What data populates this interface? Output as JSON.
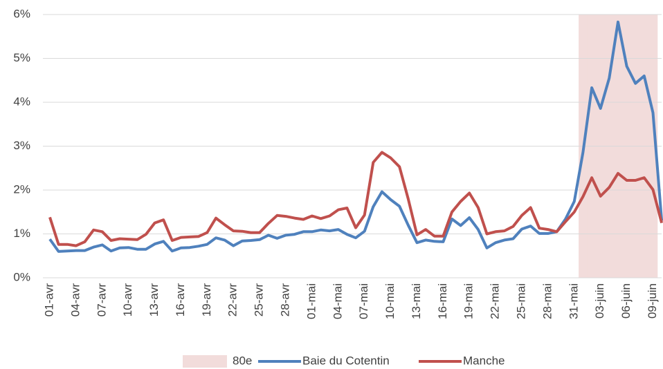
{
  "chart_data": {
    "type": "line",
    "categories": [
      "01-avr",
      null,
      null,
      "04-avr",
      null,
      null,
      "07-avr",
      null,
      null,
      "10-avr",
      null,
      null,
      "13-avr",
      null,
      null,
      "16-avr",
      null,
      null,
      "19-avr",
      null,
      null,
      "22-avr",
      null,
      null,
      "25-avr",
      null,
      null,
      "28-avr",
      null,
      null,
      "01-mai",
      null,
      null,
      "04-mai",
      null,
      null,
      "07-mai",
      null,
      null,
      "10-mai",
      null,
      null,
      "13-mai",
      null,
      null,
      "16-mai",
      null,
      null,
      "19-mai",
      null,
      null,
      "22-mai",
      null,
      null,
      "25-mai",
      null,
      null,
      "28-mai",
      null,
      null,
      "31-mai",
      null,
      null,
      "03-juin",
      null,
      null,
      "06-juin",
      null,
      null,
      "09-juin",
      null
    ],
    "series": [
      {
        "name": "80e",
        "type": "bar",
        "color": "#f2dcdb",
        "values": [
          null,
          null,
          null,
          null,
          null,
          null,
          null,
          null,
          null,
          null,
          null,
          null,
          null,
          null,
          null,
          null,
          null,
          null,
          null,
          null,
          null,
          null,
          null,
          null,
          null,
          null,
          null,
          null,
          null,
          null,
          null,
          null,
          null,
          null,
          null,
          null,
          null,
          null,
          null,
          null,
          null,
          null,
          null,
          null,
          null,
          null,
          null,
          null,
          null,
          null,
          null,
          null,
          null,
          null,
          null,
          null,
          null,
          null,
          null,
          null,
          null,
          6,
          6,
          6,
          6,
          6,
          6,
          6,
          6,
          6,
          null
        ]
      },
      {
        "name": "Baie du Cotentin",
        "color": "#4f81bd",
        "values": [
          0.88,
          0.6,
          0.61,
          0.62,
          0.62,
          0.7,
          0.75,
          0.61,
          0.68,
          0.69,
          0.65,
          0.65,
          0.77,
          0.83,
          0.61,
          0.68,
          0.69,
          0.72,
          0.76,
          0.91,
          0.86,
          0.73,
          0.84,
          0.85,
          0.87,
          0.97,
          0.9,
          0.97,
          0.99,
          1.05,
          1.05,
          1.09,
          1.07,
          1.1,
          0.99,
          0.91,
          1.06,
          1.62,
          1.96,
          1.78,
          1.63,
          1.2,
          0.8,
          0.86,
          0.83,
          0.82,
          1.34,
          1.19,
          1.37,
          1.1,
          0.68,
          0.8,
          0.86,
          0.89,
          1.11,
          1.18,
          1.01,
          1.01,
          1.05,
          1.34,
          1.74,
          2.86,
          4.33,
          3.86,
          4.55,
          5.83,
          4.82,
          4.43,
          4.6,
          3.76,
          1.3
        ]
      },
      {
        "name": "Manche",
        "color": "#c0504d",
        "values": [
          1.38,
          0.76,
          0.76,
          0.73,
          0.82,
          1.09,
          1.05,
          0.85,
          0.89,
          0.88,
          0.87,
          0.99,
          1.25,
          1.32,
          0.85,
          0.92,
          0.93,
          0.94,
          1.03,
          1.36,
          1.21,
          1.07,
          1.06,
          1.03,
          1.03,
          1.24,
          1.42,
          1.4,
          1.36,
          1.33,
          1.41,
          1.35,
          1.41,
          1.55,
          1.59,
          1.14,
          1.43,
          2.63,
          2.86,
          2.73,
          2.53,
          1.8,
          0.98,
          1.1,
          0.95,
          0.95,
          1.5,
          1.74,
          1.93,
          1.6,
          1.0,
          1.05,
          1.07,
          1.17,
          1.42,
          1.6,
          1.13,
          1.1,
          1.05,
          1.28,
          1.5,
          1.85,
          2.28,
          1.86,
          2.06,
          2.38,
          2.22,
          2.22,
          2.28,
          2.01,
          1.25
        ]
      }
    ],
    "ylim": [
      0,
      6
    ],
    "yticks": [
      {
        "value": 0,
        "label": "0%"
      },
      {
        "value": 1,
        "label": "1%"
      },
      {
        "value": 2,
        "label": "2%"
      },
      {
        "value": 3,
        "label": "3%"
      },
      {
        "value": 4,
        "label": "4%"
      },
      {
        "value": 5,
        "label": "5%"
      },
      {
        "value": 6,
        "label": "6%"
      }
    ],
    "grid": true,
    "legend": "bottom"
  }
}
